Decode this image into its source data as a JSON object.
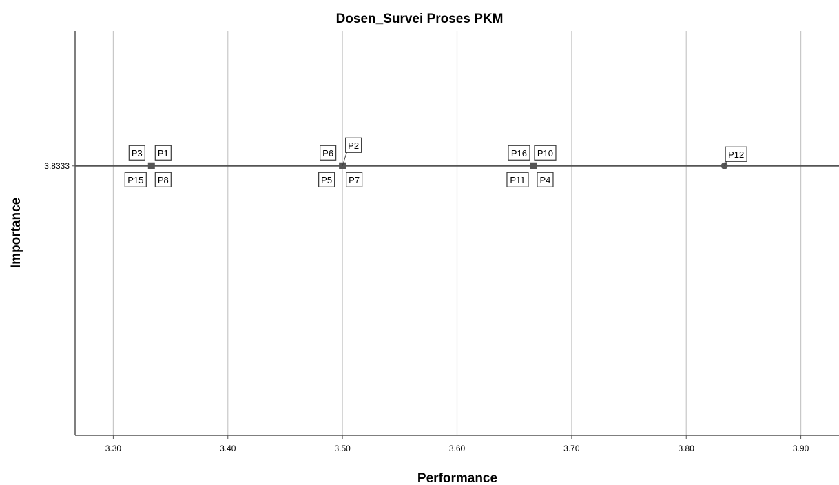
{
  "chart_data": {
    "type": "scatter",
    "title": "Dosen_Survei Proses PKM",
    "xlabel": "Performance",
    "ylabel": "Importance",
    "xlim": [
      3.2667,
      3.9333
    ],
    "ylim": [
      3.7,
      3.9
    ],
    "x_ticks": [
      "3.30",
      "3.40",
      "3.50",
      "3.60",
      "3.70",
      "3.80",
      "3.90"
    ],
    "x_tick_values": [
      3.3,
      3.4,
      3.5,
      3.6,
      3.7,
      3.8,
      3.9
    ],
    "y_ticks": [
      "3.8333"
    ],
    "y_tick_values": [
      3.8333
    ],
    "reference_line_y": 3.8333,
    "grid": "vertical",
    "points": [
      {
        "label": "P1",
        "x": 3.3333,
        "y": 3.8333
      },
      {
        "label": "P3",
        "x": 3.3333,
        "y": 3.8333
      },
      {
        "label": "P8",
        "x": 3.3333,
        "y": 3.8333
      },
      {
        "label": "P15",
        "x": 3.3333,
        "y": 3.8333
      },
      {
        "label": "P2",
        "x": 3.5,
        "y": 3.8333
      },
      {
        "label": "P5",
        "x": 3.5,
        "y": 3.8333
      },
      {
        "label": "P6",
        "x": 3.5,
        "y": 3.8333
      },
      {
        "label": "P7",
        "x": 3.5,
        "y": 3.8333
      },
      {
        "label": "P4",
        "x": 3.6667,
        "y": 3.8333
      },
      {
        "label": "P10",
        "x": 3.6667,
        "y": 3.8333
      },
      {
        "label": "P11",
        "x": 3.6667,
        "y": 3.8333
      },
      {
        "label": "P16",
        "x": 3.6667,
        "y": 3.8333
      },
      {
        "label": "P12",
        "x": 3.8333,
        "y": 3.8333
      }
    ],
    "colors": {
      "grid": "#c8c8c8",
      "axis": "#555555",
      "marker": "#555555",
      "reference_line": "#555555"
    }
  }
}
